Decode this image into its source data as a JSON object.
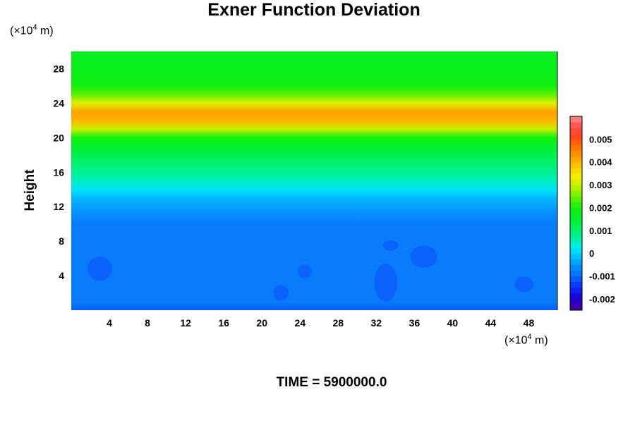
{
  "chart_data": {
    "type": "heatmap",
    "title": "Exner Function Deviation",
    "ylabel": "Height",
    "xunit": {
      "prefix": "(×10",
      "exp": "4",
      "suffix": " m)"
    },
    "yunit": {
      "prefix": "(×10",
      "exp": "4",
      "suffix": " m)"
    },
    "xlim": [
      0,
      51
    ],
    "ylim": [
      0,
      30
    ],
    "xticks": [
      4,
      8,
      12,
      16,
      20,
      24,
      28,
      32,
      36,
      40,
      44,
      48
    ],
    "yticks": [
      4,
      8,
      12,
      16,
      20,
      24,
      28
    ],
    "colorbar": {
      "ticks": [
        "0.005",
        "0.004",
        "0.003",
        "0.002",
        "0.001",
        "0",
        "-0.001",
        "-0.002"
      ],
      "tick_values": [
        0.005,
        0.004,
        0.003,
        0.002,
        0.001,
        0,
        -0.001,
        -0.002
      ],
      "range": [
        -0.0025,
        0.006
      ],
      "step": 0.00025
    },
    "profile": {
      "description_levels": "approximate horizontally-averaged value by height",
      "heights": [
        0,
        1,
        3,
        6,
        10,
        11.5,
        13,
        14,
        15.5,
        17,
        18.5,
        20,
        21,
        22,
        23,
        24,
        25,
        26,
        28,
        30
      ],
      "values": [
        -0.0011,
        -0.0008,
        -0.0008,
        -0.0008,
        -0.0008,
        -0.0005,
        -0.0002,
        0.0002,
        0.0006,
        0.001,
        0.0014,
        0.002,
        0.003,
        0.004,
        0.0042,
        0.0032,
        0.0024,
        0.002,
        0.0018,
        0.0017
      ]
    },
    "footer": "TIME = 5900000.0"
  }
}
